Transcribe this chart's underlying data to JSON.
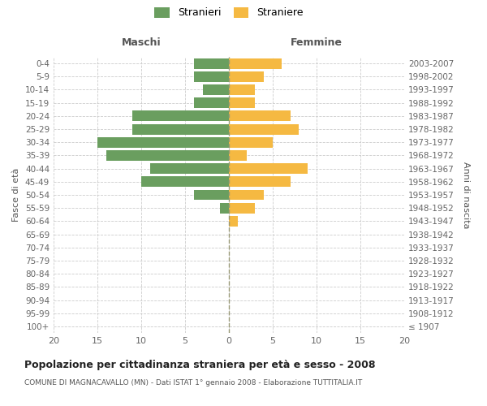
{
  "age_groups": [
    "100+",
    "95-99",
    "90-94",
    "85-89",
    "80-84",
    "75-79",
    "70-74",
    "65-69",
    "60-64",
    "55-59",
    "50-54",
    "45-49",
    "40-44",
    "35-39",
    "30-34",
    "25-29",
    "20-24",
    "15-19",
    "10-14",
    "5-9",
    "0-4"
  ],
  "birth_years": [
    "≤ 1907",
    "1908-1912",
    "1913-1917",
    "1918-1922",
    "1923-1927",
    "1928-1932",
    "1933-1937",
    "1938-1942",
    "1943-1947",
    "1948-1952",
    "1953-1957",
    "1958-1962",
    "1963-1967",
    "1968-1972",
    "1973-1977",
    "1978-1982",
    "1983-1987",
    "1988-1992",
    "1993-1997",
    "1998-2002",
    "2003-2007"
  ],
  "males": [
    0,
    0,
    0,
    0,
    0,
    0,
    0,
    0,
    0,
    1,
    4,
    10,
    9,
    14,
    15,
    11,
    11,
    4,
    3,
    4,
    4
  ],
  "females": [
    0,
    0,
    0,
    0,
    0,
    0,
    0,
    0,
    1,
    3,
    4,
    7,
    9,
    2,
    5,
    8,
    7,
    3,
    3,
    4,
    6
  ],
  "male_color": "#6a9e5f",
  "female_color": "#f5b942",
  "title": "Popolazione per cittadinanza straniera per età e sesso - 2008",
  "subtitle": "COMUNE DI MAGNACAVALLO (MN) - Dati ISTAT 1° gennaio 2008 - Elaborazione TUTTITALIA.IT",
  "xlabel_left": "Maschi",
  "xlabel_right": "Femmine",
  "ylabel_left": "Fasce di età",
  "ylabel_right": "Anni di nascita",
  "legend_male": "Stranieri",
  "legend_female": "Straniere",
  "xlim": 20,
  "background_color": "#ffffff",
  "grid_color": "#cccccc",
  "bar_height": 0.8,
  "center_line_color": "#999977"
}
